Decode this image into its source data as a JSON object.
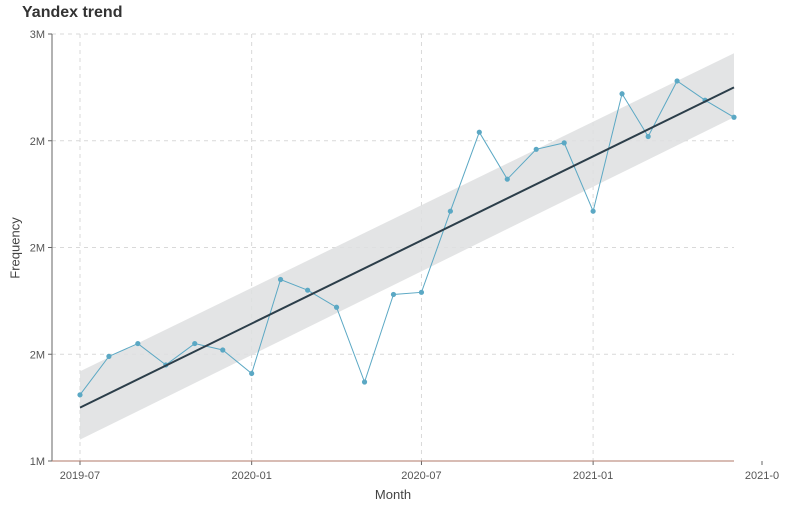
{
  "chart_data": {
    "type": "line",
    "title": "Yandex trend",
    "xlabel": "Month",
    "ylabel": "Frequency",
    "x_ticks": [
      "2019-07",
      "2020-01",
      "2020-07",
      "2021-01",
      "2021-0"
    ],
    "y_ticks": [
      {
        "value": 1000000,
        "label": "1M"
      },
      {
        "value": 1500000,
        "label": "2M"
      },
      {
        "value": 2000000,
        "label": "2M"
      },
      {
        "value": 2500000,
        "label": "2M"
      },
      {
        "value": 3000000,
        "label": "3M"
      }
    ],
    "ylim": [
      1000000,
      3000000
    ],
    "xlim": [
      "2019-06-01",
      "2021-06-01"
    ],
    "grid": true,
    "series": [
      {
        "type": "line+points",
        "color": "#5ba8c4",
        "x": [
          "2019-07-01",
          "2019-08-01",
          "2019-09-01",
          "2019-10-01",
          "2019-11-01",
          "2019-12-01",
          "2020-01-01",
          "2020-02-01",
          "2020-03-01",
          "2020-04-01",
          "2020-05-01",
          "2020-06-01",
          "2020-07-01",
          "2020-08-01",
          "2020-09-01",
          "2020-10-01",
          "2020-11-01",
          "2020-12-01",
          "2021-01-01",
          "2021-02-01",
          "2021-03-01",
          "2021-04-01",
          "2021-05-01",
          "2021-06-01"
        ],
        "values": [
          1310000,
          1490000,
          1550000,
          1450000,
          1550000,
          1520000,
          1410000,
          1850000,
          1800000,
          1720000,
          1370000,
          1780000,
          1790000,
          2170000,
          2540000,
          2320000,
          2460000,
          2490000,
          2170000,
          2720000,
          2520000,
          2780000,
          2690000,
          2610000
        ]
      },
      {
        "type": "trend",
        "color": "#2c3e4a",
        "band_color": "#dedfe0",
        "x": [
          "2019-07-01",
          "2021-06-01"
        ],
        "values": [
          1250000,
          2750000
        ],
        "upper": [
          1420000,
          2910000
        ],
        "lower": [
          1100000,
          2610000
        ]
      }
    ]
  }
}
